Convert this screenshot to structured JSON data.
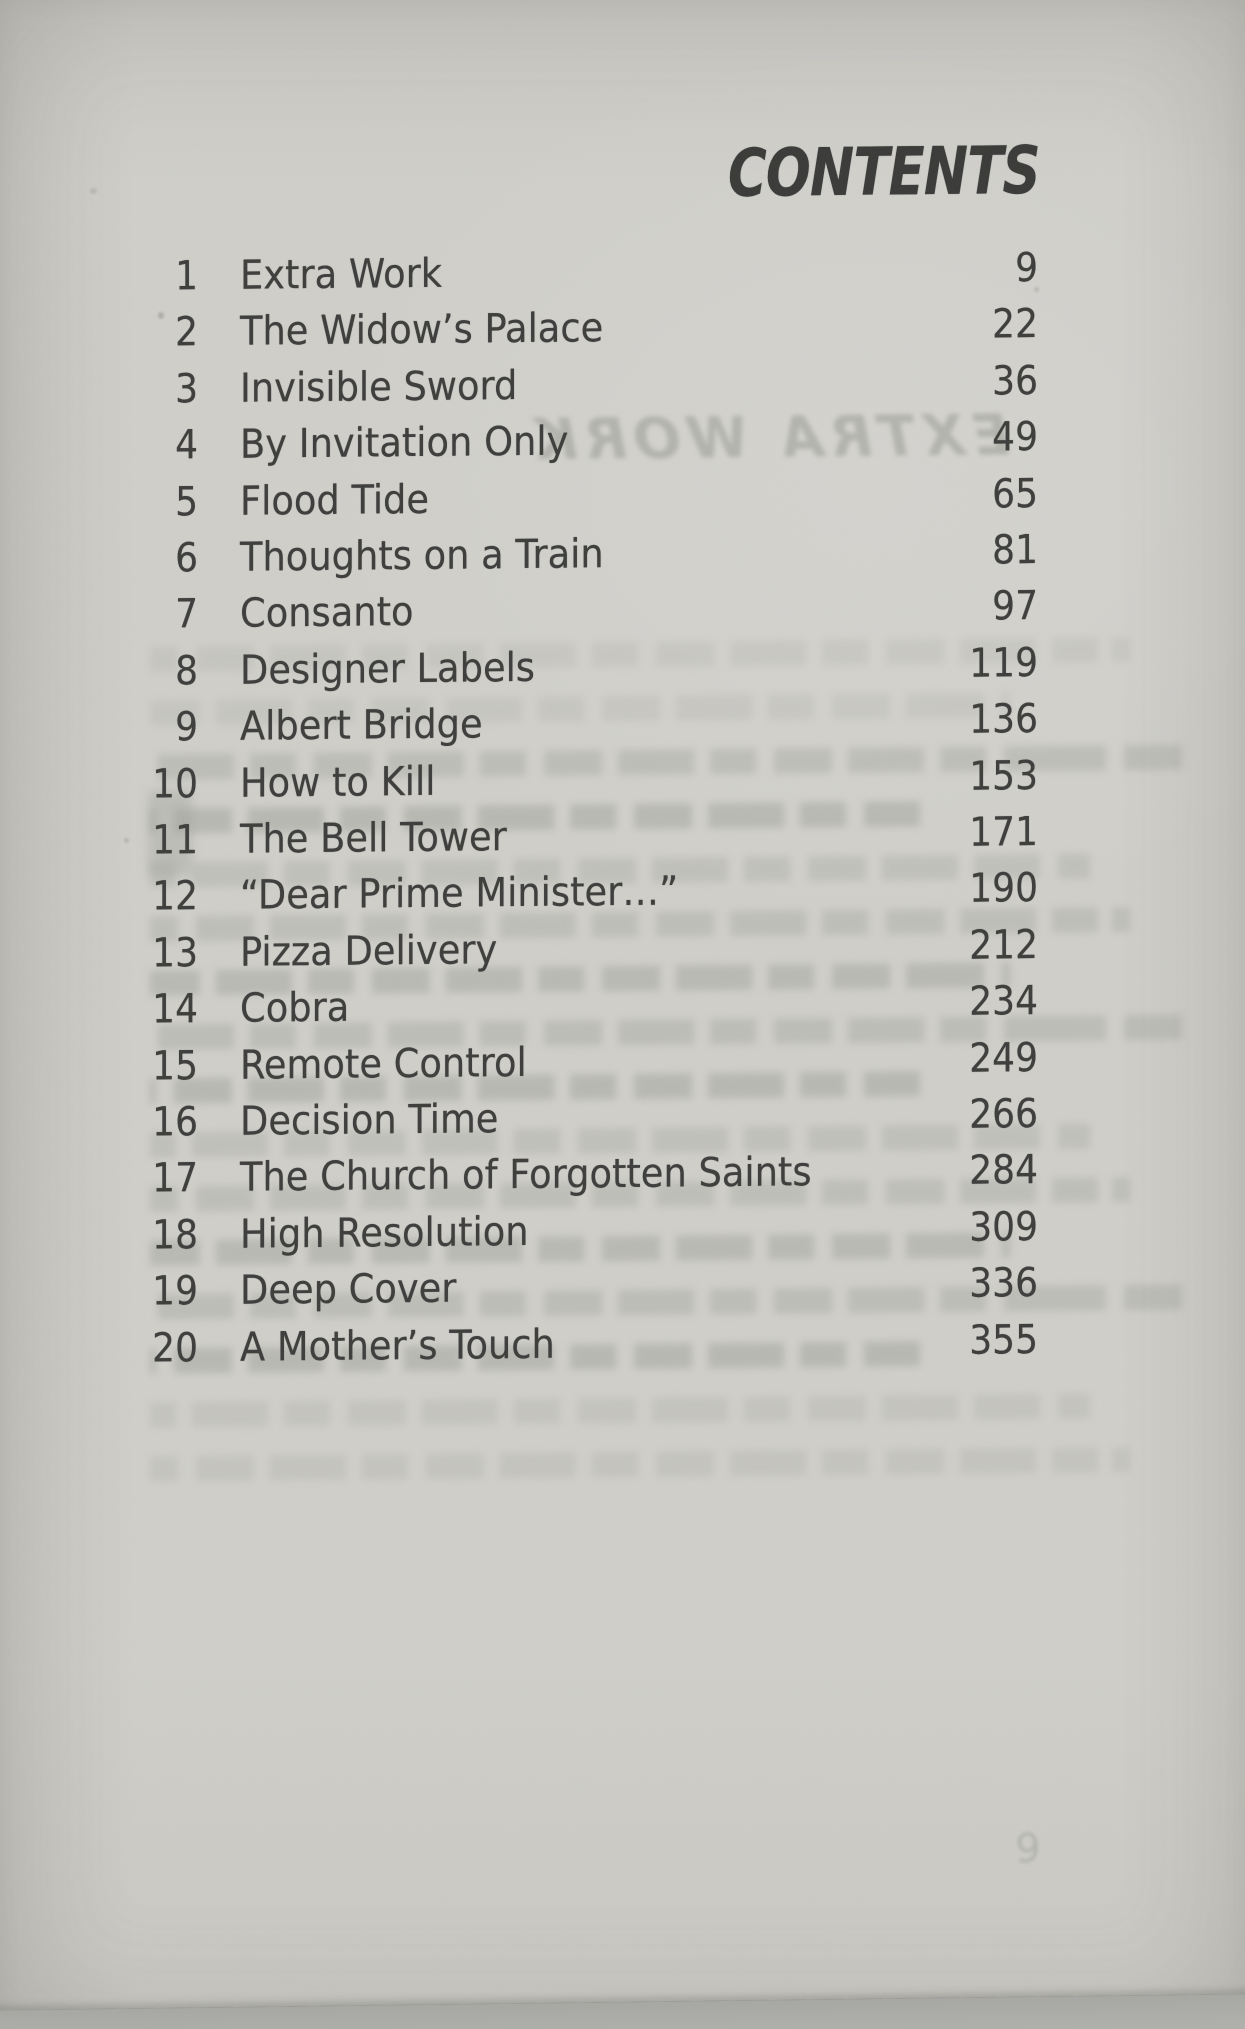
{
  "page": {
    "title": "CONTENTS",
    "bleed_through": {
      "next_chapter_title": "EXTRA WORK",
      "next_page_number": "9"
    }
  },
  "toc": {
    "entries": [
      {
        "num": "1",
        "title": "Extra Work",
        "page": "9"
      },
      {
        "num": "2",
        "title": "The Widow’s Palace",
        "page": "22"
      },
      {
        "num": "3",
        "title": "Invisible Sword",
        "page": "36"
      },
      {
        "num": "4",
        "title": "By Invitation Only",
        "page": "49"
      },
      {
        "num": "5",
        "title": "Flood Tide",
        "page": "65"
      },
      {
        "num": "6",
        "title": "Thoughts on a Train",
        "page": "81"
      },
      {
        "num": "7",
        "title": "Consanto",
        "page": "97"
      },
      {
        "num": "8",
        "title": "Designer Labels",
        "page": "119"
      },
      {
        "num": "9",
        "title": "Albert Bridge",
        "page": "136"
      },
      {
        "num": "10",
        "title": "How to Kill",
        "page": "153"
      },
      {
        "num": "11",
        "title": "The Bell Tower",
        "page": "171"
      },
      {
        "num": "12",
        "title": "“Dear Prime Minister…”",
        "page": "190"
      },
      {
        "num": "13",
        "title": "Pizza Delivery",
        "page": "212"
      },
      {
        "num": "14",
        "title": "Cobra",
        "page": "234"
      },
      {
        "num": "15",
        "title": "Remote Control",
        "page": "249"
      },
      {
        "num": "16",
        "title": "Decision Time",
        "page": "266"
      },
      {
        "num": "17",
        "title": "The Church of Forgotten Saints",
        "page": "284"
      },
      {
        "num": "18",
        "title": "High Resolution",
        "page": "309"
      },
      {
        "num": "19",
        "title": "Deep Cover",
        "page": "336"
      },
      {
        "num": "20",
        "title": "A Mother’s Touch",
        "page": "355"
      }
    ]
  }
}
